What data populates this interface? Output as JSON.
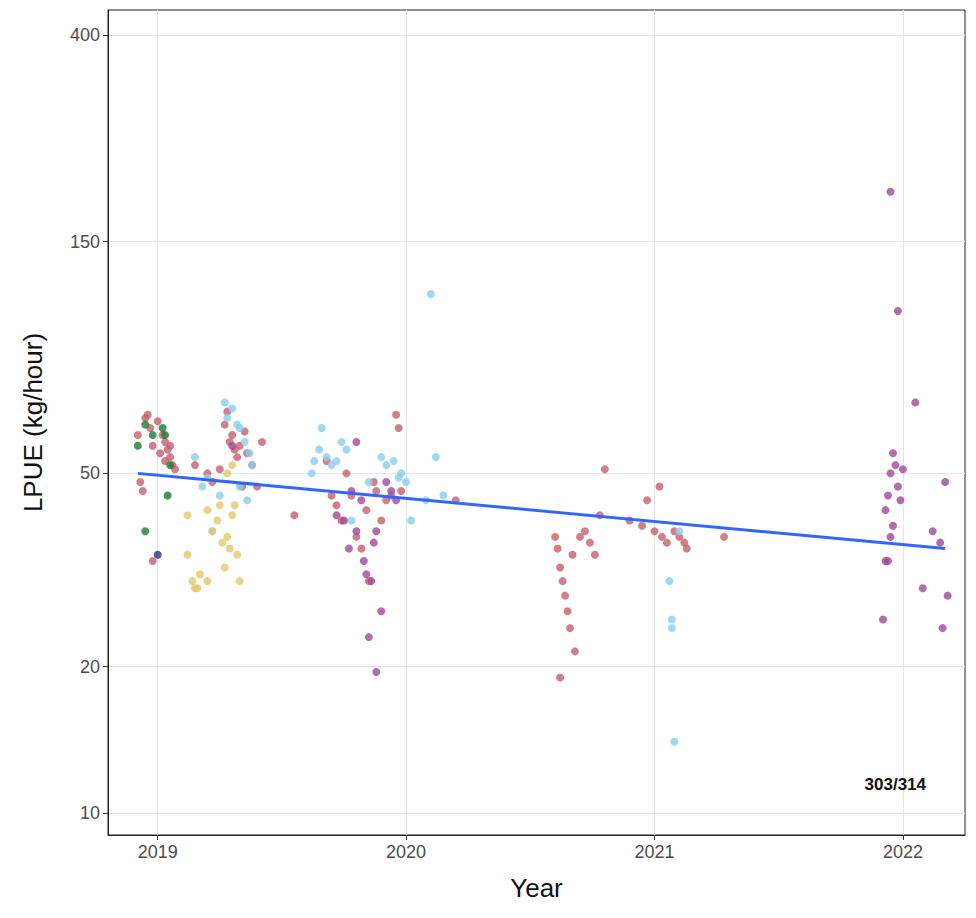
{
  "chart_data": {
    "type": "scatter",
    "x_label": "Year",
    "y_label": "LPUE (kg/hour)",
    "annotation": "303/314",
    "log": "y",
    "grid": true,
    "marker": "circle",
    "xlim": [
      2018.8,
      2022.25
    ],
    "xticks": [
      2019,
      2020,
      2021,
      2022
    ],
    "ylim": [
      9,
      450
    ],
    "yticks": [
      10,
      20,
      50,
      150,
      400
    ],
    "series": [
      {
        "color": "#C6606E",
        "values": [
          [
            2018.92,
            60
          ],
          [
            2018.93,
            48
          ],
          [
            2018.95,
            65
          ],
          [
            2018.96,
            66
          ],
          [
            2018.97,
            62
          ],
          [
            2018.98,
            57
          ],
          [
            2019.0,
            64
          ],
          [
            2019.01,
            55
          ],
          [
            2019.02,
            60
          ],
          [
            2019.03,
            53
          ],
          [
            2019.04,
            56
          ],
          [
            2019.05,
            54
          ],
          [
            2019.06,
            52
          ],
          [
            2019.07,
            51
          ],
          [
            2018.98,
            33
          ],
          [
            2019.03,
            58
          ],
          [
            2018.94,
            46
          ],
          [
            2019.05,
            57
          ],
          [
            2019.15,
            52
          ],
          [
            2019.2,
            50
          ],
          [
            2019.22,
            48
          ],
          [
            2019.25,
            51
          ],
          [
            2019.27,
            63
          ],
          [
            2019.28,
            67
          ],
          [
            2019.29,
            58
          ],
          [
            2019.3,
            60
          ],
          [
            2019.31,
            56
          ],
          [
            2019.32,
            54
          ],
          [
            2019.33,
            57
          ],
          [
            2019.34,
            47
          ],
          [
            2019.35,
            61
          ],
          [
            2019.36,
            55
          ],
          [
            2019.38,
            52
          ],
          [
            2019.4,
            47
          ],
          [
            2019.42,
            58
          ],
          [
            2019.55,
            41
          ],
          [
            2019.68,
            53
          ],
          [
            2019.7,
            45
          ],
          [
            2019.72,
            43
          ],
          [
            2019.74,
            40
          ],
          [
            2019.76,
            50
          ],
          [
            2019.78,
            45
          ],
          [
            2019.8,
            37
          ],
          [
            2019.82,
            35
          ],
          [
            2019.84,
            42
          ],
          [
            2019.85,
            30
          ],
          [
            2019.87,
            48
          ],
          [
            2019.88,
            46
          ],
          [
            2019.9,
            40
          ],
          [
            2019.92,
            44
          ],
          [
            2019.94,
            45
          ],
          [
            2019.96,
            66
          ],
          [
            2019.97,
            62
          ],
          [
            2019.98,
            46
          ],
          [
            2020.2,
            44
          ],
          [
            2020.6,
            37
          ],
          [
            2020.61,
            35
          ],
          [
            2020.62,
            32
          ],
          [
            2020.63,
            30
          ],
          [
            2020.64,
            28
          ],
          [
            2020.65,
            26
          ],
          [
            2020.66,
            24
          ],
          [
            2020.68,
            21.5
          ],
          [
            2020.62,
            19
          ],
          [
            2020.67,
            34
          ],
          [
            2020.7,
            37
          ],
          [
            2020.72,
            38
          ],
          [
            2020.74,
            36
          ],
          [
            2020.76,
            34
          ],
          [
            2020.78,
            41
          ],
          [
            2020.8,
            51
          ],
          [
            2020.9,
            40
          ],
          [
            2020.95,
            39
          ],
          [
            2020.97,
            44
          ],
          [
            2021.0,
            38
          ],
          [
            2021.02,
            47
          ],
          [
            2021.03,
            37
          ],
          [
            2021.05,
            36
          ],
          [
            2021.08,
            38
          ],
          [
            2021.1,
            37
          ],
          [
            2021.12,
            36
          ],
          [
            2021.13,
            35
          ],
          [
            2021.28,
            37
          ]
        ]
      },
      {
        "color": "#87CEEB",
        "values": [
          [
            2019.15,
            54
          ],
          [
            2019.18,
            47
          ],
          [
            2019.2,
            49
          ],
          [
            2019.25,
            45
          ],
          [
            2019.22,
            38
          ],
          [
            2019.27,
            70
          ],
          [
            2019.28,
            65
          ],
          [
            2019.3,
            68
          ],
          [
            2019.32,
            63
          ],
          [
            2019.33,
            62
          ],
          [
            2019.35,
            58
          ],
          [
            2019.37,
            55
          ],
          [
            2019.38,
            52
          ],
          [
            2019.33,
            47
          ],
          [
            2019.36,
            44
          ],
          [
            2019.62,
            50
          ],
          [
            2019.63,
            53
          ],
          [
            2019.65,
            56
          ],
          [
            2019.66,
            62
          ],
          [
            2019.68,
            54
          ],
          [
            2019.7,
            52
          ],
          [
            2019.72,
            53
          ],
          [
            2019.74,
            58
          ],
          [
            2019.76,
            56
          ],
          [
            2019.78,
            40
          ],
          [
            2019.85,
            48
          ],
          [
            2019.9,
            54
          ],
          [
            2019.92,
            52
          ],
          [
            2019.95,
            53
          ],
          [
            2019.97,
            49
          ],
          [
            2020.0,
            48
          ],
          [
            2020.02,
            40
          ],
          [
            2020.08,
            44
          ],
          [
            2020.1,
            117
          ],
          [
            2020.12,
            54
          ],
          [
            2020.15,
            45
          ],
          [
            2019.98,
            50
          ],
          [
            2021.06,
            30
          ],
          [
            2021.07,
            25
          ],
          [
            2021.07,
            24
          ],
          [
            2021.08,
            14
          ],
          [
            2021.1,
            38
          ]
        ]
      },
      {
        "color": "#A0479A",
        "values": [
          [
            2019.3,
            57
          ],
          [
            2019.75,
            40
          ],
          [
            2019.78,
            46
          ],
          [
            2019.8,
            38
          ],
          [
            2019.82,
            44
          ],
          [
            2019.83,
            33
          ],
          [
            2019.84,
            31
          ],
          [
            2019.86,
            30
          ],
          [
            2019.87,
            36
          ],
          [
            2019.88,
            38
          ],
          [
            2019.9,
            26
          ],
          [
            2019.88,
            19.5
          ],
          [
            2019.85,
            23
          ],
          [
            2019.92,
            48
          ],
          [
            2019.94,
            46
          ],
          [
            2019.96,
            44
          ],
          [
            2019.72,
            41
          ],
          [
            2019.77,
            35
          ],
          [
            2019.8,
            58
          ],
          [
            2021.92,
            25
          ],
          [
            2021.93,
            33
          ],
          [
            2021.94,
            33
          ],
          [
            2021.95,
            37
          ],
          [
            2021.96,
            39
          ],
          [
            2021.93,
            42
          ],
          [
            2021.94,
            45
          ],
          [
            2021.95,
            50
          ],
          [
            2021.96,
            55
          ],
          [
            2021.97,
            52
          ],
          [
            2021.98,
            47
          ],
          [
            2021.99,
            44
          ],
          [
            2022.0,
            51
          ],
          [
            2021.95,
            190
          ],
          [
            2021.98,
            108
          ],
          [
            2022.05,
            70
          ],
          [
            2022.08,
            29
          ],
          [
            2022.12,
            38
          ],
          [
            2022.15,
            36
          ],
          [
            2022.17,
            48
          ],
          [
            2022.18,
            28
          ],
          [
            2022.16,
            24
          ]
        ]
      },
      {
        "color": "#E3C86B",
        "values": [
          [
            2019.12,
            34
          ],
          [
            2019.14,
            30
          ],
          [
            2019.16,
            29
          ],
          [
            2019.17,
            31
          ],
          [
            2019.2,
            42
          ],
          [
            2019.22,
            38
          ],
          [
            2019.24,
            40
          ],
          [
            2019.25,
            43
          ],
          [
            2019.26,
            36
          ],
          [
            2019.27,
            32
          ],
          [
            2019.28,
            37
          ],
          [
            2019.29,
            35
          ],
          [
            2019.3,
            41
          ],
          [
            2019.31,
            43
          ],
          [
            2019.32,
            34
          ],
          [
            2019.33,
            30
          ],
          [
            2019.12,
            41
          ],
          [
            2019.28,
            50
          ],
          [
            2019.3,
            52
          ],
          [
            2019.15,
            29
          ],
          [
            2019.2,
            30
          ]
        ]
      },
      {
        "color": "#1E7B34",
        "values": [
          [
            2018.92,
            57
          ],
          [
            2018.95,
            63
          ],
          [
            2018.98,
            60
          ],
          [
            2019.02,
            62
          ],
          [
            2019.03,
            60
          ],
          [
            2019.04,
            45
          ],
          [
            2019.05,
            52
          ],
          [
            2018.95,
            38
          ]
        ]
      },
      {
        "color": "#25337F",
        "values": [
          [
            2019.0,
            34
          ]
        ]
      }
    ],
    "trend": {
      "type": "line",
      "color": "#3366FF",
      "x": [
        2018.92,
        2022.17
      ],
      "values": [
        50,
        35
      ]
    }
  }
}
